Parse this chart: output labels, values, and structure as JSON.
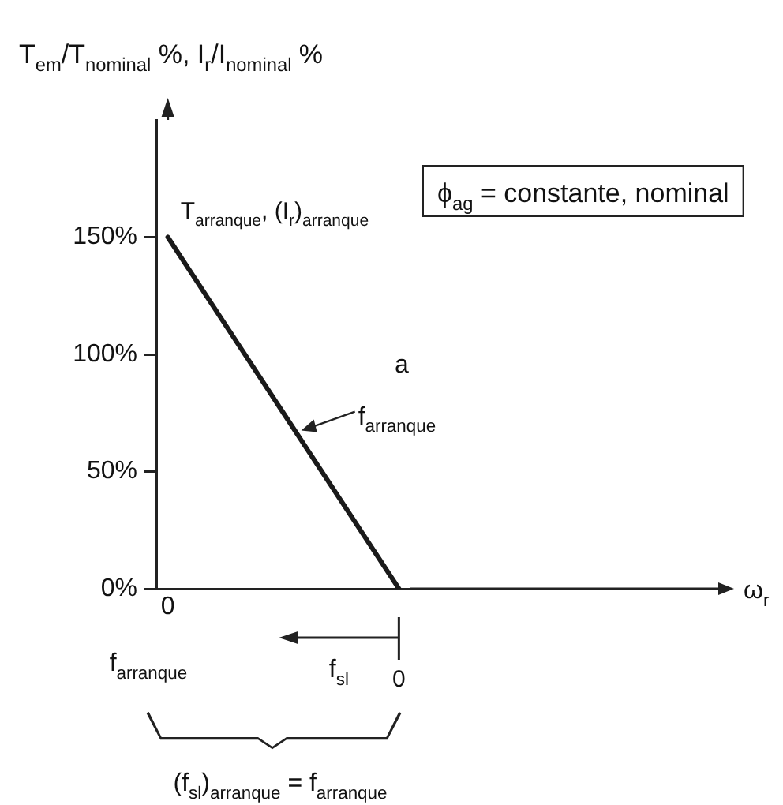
{
  "chart_data": {
    "type": "line",
    "ylabel": "T$_{em}$/T$_{nominal}$ %, I$_{r}$/I$_{nominal}$ %",
    "categories": [
      "0",
      null,
      null,
      null,
      null,
      null,
      null,
      null,
      null,
      null,
      null
    ],
    "series": [
      {
        "color": "#1a1a1a",
        "values": [
          150,
          135,
          120,
          105,
          90,
          75,
          60,
          45,
          30,
          15,
          0
        ]
      }
    ],
    "ylim": [
      0,
      200
    ],
    "yticks": [
      {
        "value": 0,
        "label": "0%"
      },
      {
        "value": 50,
        "label": "50%"
      },
      {
        "value": 100,
        "label": "100%"
      },
      {
        "value": 150,
        "label": "150%"
      }
    ],
    "grid": false,
    "legend": false,
    "marker": "none",
    "line_style": "solid",
    "annotations": [
      "T$_{arranque}$, (I$_{r}$)$_{arranque}$",
      "ϕ$_{ag}$ = constante, nominal",
      "a",
      "f$_{arranque}$",
      "f$_{arranque}$",
      "f$_{sl}$",
      "0",
      "(f$_{sl}$)$_{arranque}$ = f$_{arranque}$",
      "ω$_{r}$"
    ]
  }
}
